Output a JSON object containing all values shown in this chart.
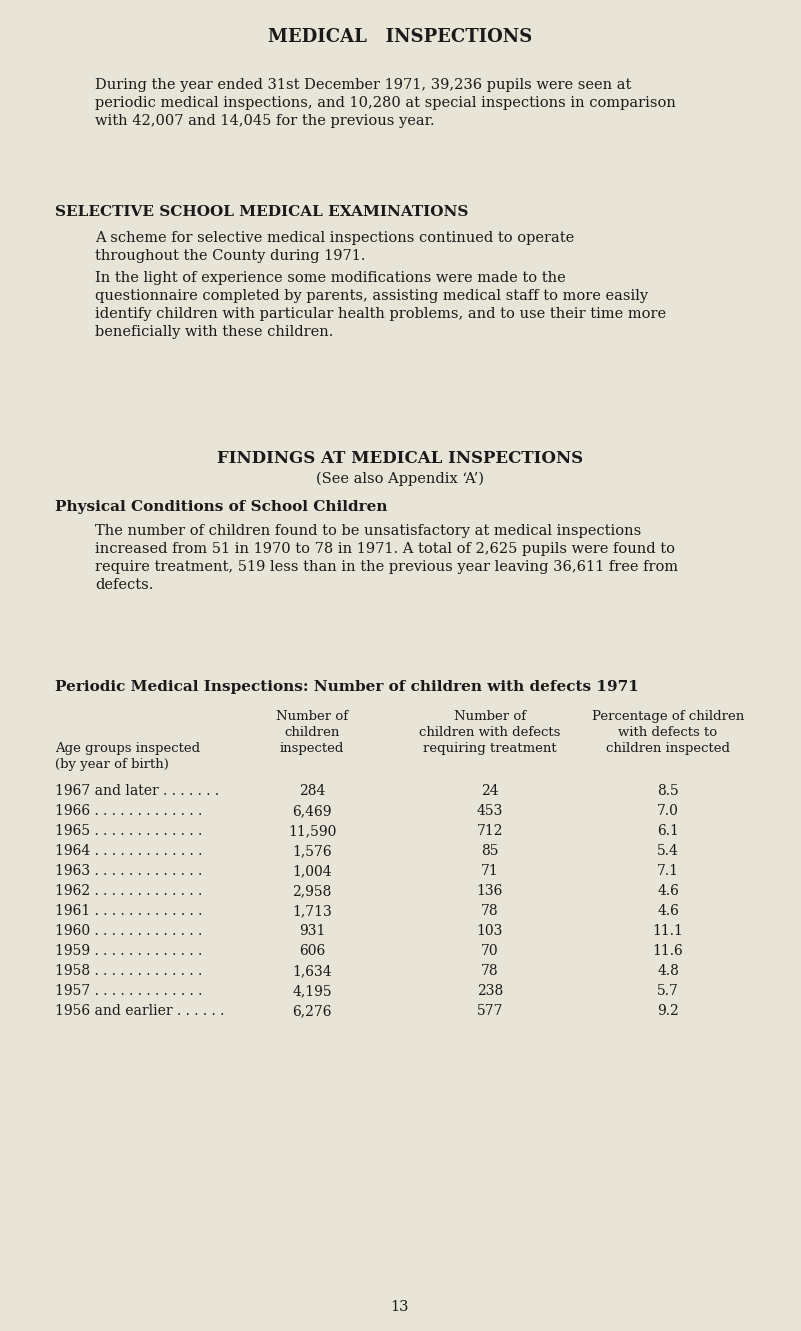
{
  "background_color": "#e8e4d8",
  "title": "MEDICAL   INSPECTIONS",
  "page_number": "13",
  "para1_lines": [
    "During the year ended 31st December 1971, 39,236 pupils were seen at",
    "periodic medical inspections, and 10,280 at special inspections in comparison",
    "with 42,007 and 14,045 for the previous year."
  ],
  "section2_title": "SELECTIVE SCHOOL MEDICAL EXAMINATIONS",
  "section2_para1_lines": [
    "A scheme for selective medical inspections continued to operate",
    "throughout the County during 1971."
  ],
  "section2_para2_lines": [
    "In the light of experience some modifications were made to the",
    "questionnaire completed by parents, assisting medical staff to more easily",
    "identify children with particular health problems, and to use their time more",
    "beneficially with these children."
  ],
  "section3_title": "FINDINGS AT MEDICAL INSPECTIONS",
  "section3_subtitle": "(See also Appendix ‘A’)",
  "section3_sub_title": "Physical Conditions of School Children",
  "section3_para1_lines": [
    "The number of children found to be unsatisfactory at medical inspections",
    "increased from 51 in 1970 to 78 in 1971. A total of 2,625 pupils were found to",
    "require treatment, 519 less than in the previous year leaving 36,611 free from",
    "defects."
  ],
  "table_title": "Periodic Medical Inspections: Number of children with defects 1971",
  "col1_header": [
    "Age groups inspected",
    "(by year of birth)"
  ],
  "col2_header": [
    "Number of",
    "children",
    "inspected"
  ],
  "col3_header": [
    "Number of",
    "children with defects",
    "requiring treatment"
  ],
  "col4_header": [
    "Percentage of children",
    "with defects to",
    "children inspected"
  ],
  "table_rows": [
    [
      "1967 and later . . . . . . .",
      "284",
      "24",
      "8.5"
    ],
    [
      "1966 . . . . . . . . . . . . .",
      "6,469",
      "453",
      "7.0"
    ],
    [
      "1965 . . . . . . . . . . . . .",
      "11,590",
      "712",
      "6.1"
    ],
    [
      "1964 . . . . . . . . . . . . .",
      "1,576",
      "85",
      "5.4"
    ],
    [
      "1963 . . . . . . . . . . . . .",
      "1,004",
      "71",
      "7.1"
    ],
    [
      "1962 . . . . . . . . . . . . .",
      "2,958",
      "136",
      "4.6"
    ],
    [
      "1961 . . . . . . . . . . . . .",
      "1,713",
      "78",
      "4.6"
    ],
    [
      "1960 . . . . . . . . . . . . .",
      "931",
      "103",
      "11.1"
    ],
    [
      "1959 . . . . . . . . . . . . .",
      "606",
      "70",
      "11.6"
    ],
    [
      "1958 . . . . . . . . . . . . .",
      "1,634",
      "78",
      "4.8"
    ],
    [
      "1957 . . . . . . . . . . . . .",
      "4,195",
      "238",
      "5.7"
    ],
    [
      "1956 and earlier . . . . . .",
      "6,276",
      "577",
      "9.2"
    ]
  ],
  "text_color": "#1a1a1a",
  "font_family": "DejaVu Serif"
}
